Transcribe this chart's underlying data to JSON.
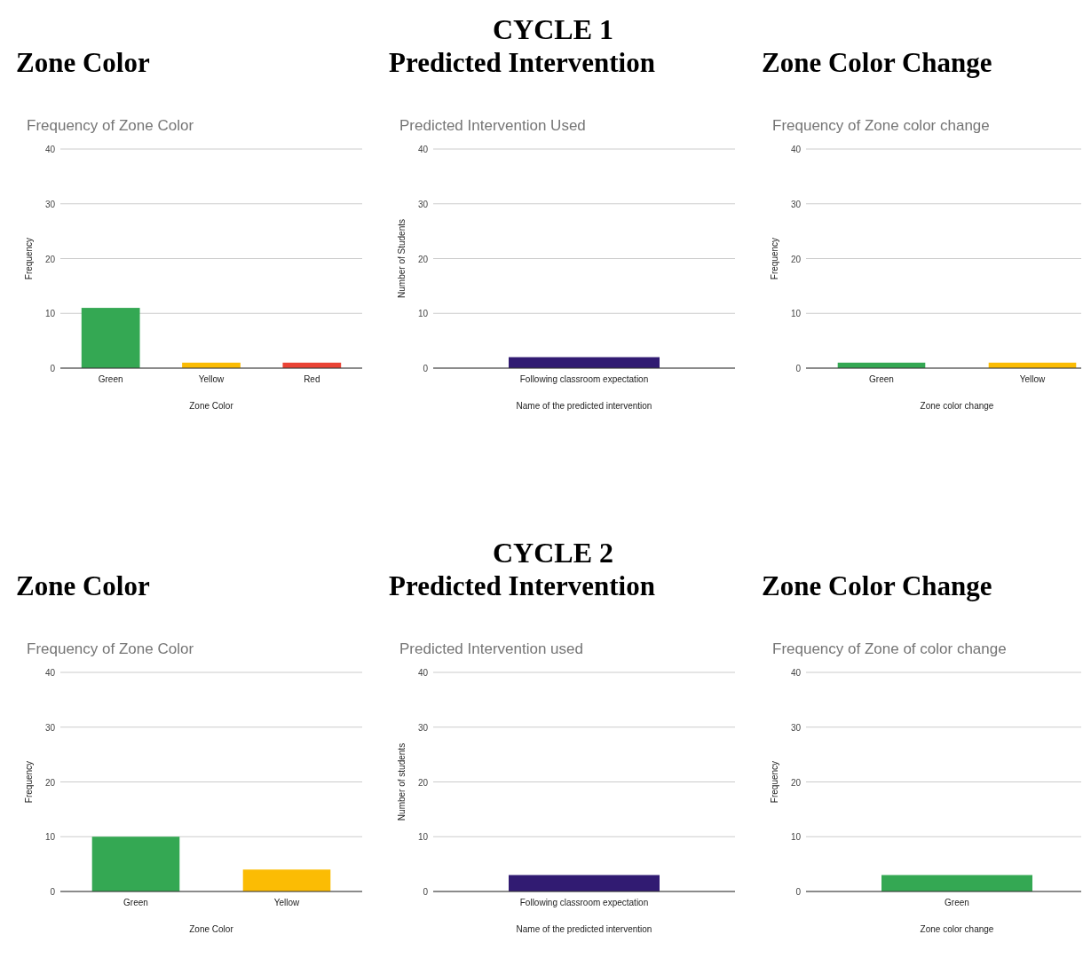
{
  "chart_data": [
    {
      "type": "bar",
      "title": "Zone Color",
      "subtitle": "Frequency of Zone Color",
      "xlabel": "Zone Color",
      "ylabel": "Frequency",
      "categories": [
        "Green",
        "Yellow",
        "Red"
      ],
      "values": [
        11,
        1,
        1
      ],
      "colors": [
        "#34a853",
        "#fbbc04",
        "#ea4335"
      ],
      "ylim": [
        0,
        40
      ],
      "yticks": [
        0,
        10,
        20,
        30,
        40
      ],
      "grid": "y"
    },
    {
      "type": "bar",
      "title": "Predicted Intervention",
      "subtitle": "Predicted Intervention Used",
      "xlabel": "Name of the predicted intervention",
      "ylabel": "Number of Students",
      "categories": [
        "Following classroom expectation"
      ],
      "values": [
        2
      ],
      "colors": [
        "#311b72"
      ],
      "ylim": [
        0,
        40
      ],
      "yticks": [
        0,
        10,
        20,
        30,
        40
      ],
      "grid": "y",
      "annotations": [
        "CYCLE 1"
      ]
    },
    {
      "type": "bar",
      "title": "Zone Color Change",
      "subtitle": "Frequency of Zone color change",
      "xlabel": "Zone color change",
      "ylabel": "Frequency",
      "categories": [
        "Green",
        "Yellow"
      ],
      "values": [
        1,
        1
      ],
      "colors": [
        "#34a853",
        "#fbbc04"
      ],
      "ylim": [
        0,
        40
      ],
      "yticks": [
        0,
        10,
        20,
        30,
        40
      ],
      "grid": "y"
    },
    {
      "type": "bar",
      "title": "Zone Color",
      "subtitle": "Frequency of Zone Color",
      "xlabel": "Zone Color",
      "ylabel": "Frequency",
      "categories": [
        "Green",
        "Yellow"
      ],
      "values": [
        10,
        4
      ],
      "colors": [
        "#34a853",
        "#fbbc04"
      ],
      "ylim": [
        0,
        40
      ],
      "yticks": [
        0,
        10,
        20,
        30,
        40
      ],
      "grid": "y"
    },
    {
      "type": "bar",
      "title": "Predicted Intervention",
      "subtitle": "Predicted Intervention used",
      "xlabel": "Name of the predicted intervention",
      "ylabel": "Number of students",
      "categories": [
        "Following classroom expectation"
      ],
      "values": [
        3
      ],
      "colors": [
        "#311b72"
      ],
      "ylim": [
        0,
        40
      ],
      "yticks": [
        0,
        10,
        20,
        30,
        40
      ],
      "grid": "y",
      "annotations": [
        "CYCLE 2"
      ]
    },
    {
      "type": "bar",
      "title": "Zone Color Change",
      "subtitle": "Frequency of Zone of color change",
      "xlabel": "Zone color change",
      "ylabel": "Frequency",
      "categories": [
        "Green"
      ],
      "values": [
        3
      ],
      "colors": [
        "#34a853"
      ],
      "ylim": [
        0,
        40
      ],
      "yticks": [
        0,
        10,
        20,
        30,
        40
      ],
      "grid": "y"
    }
  ]
}
